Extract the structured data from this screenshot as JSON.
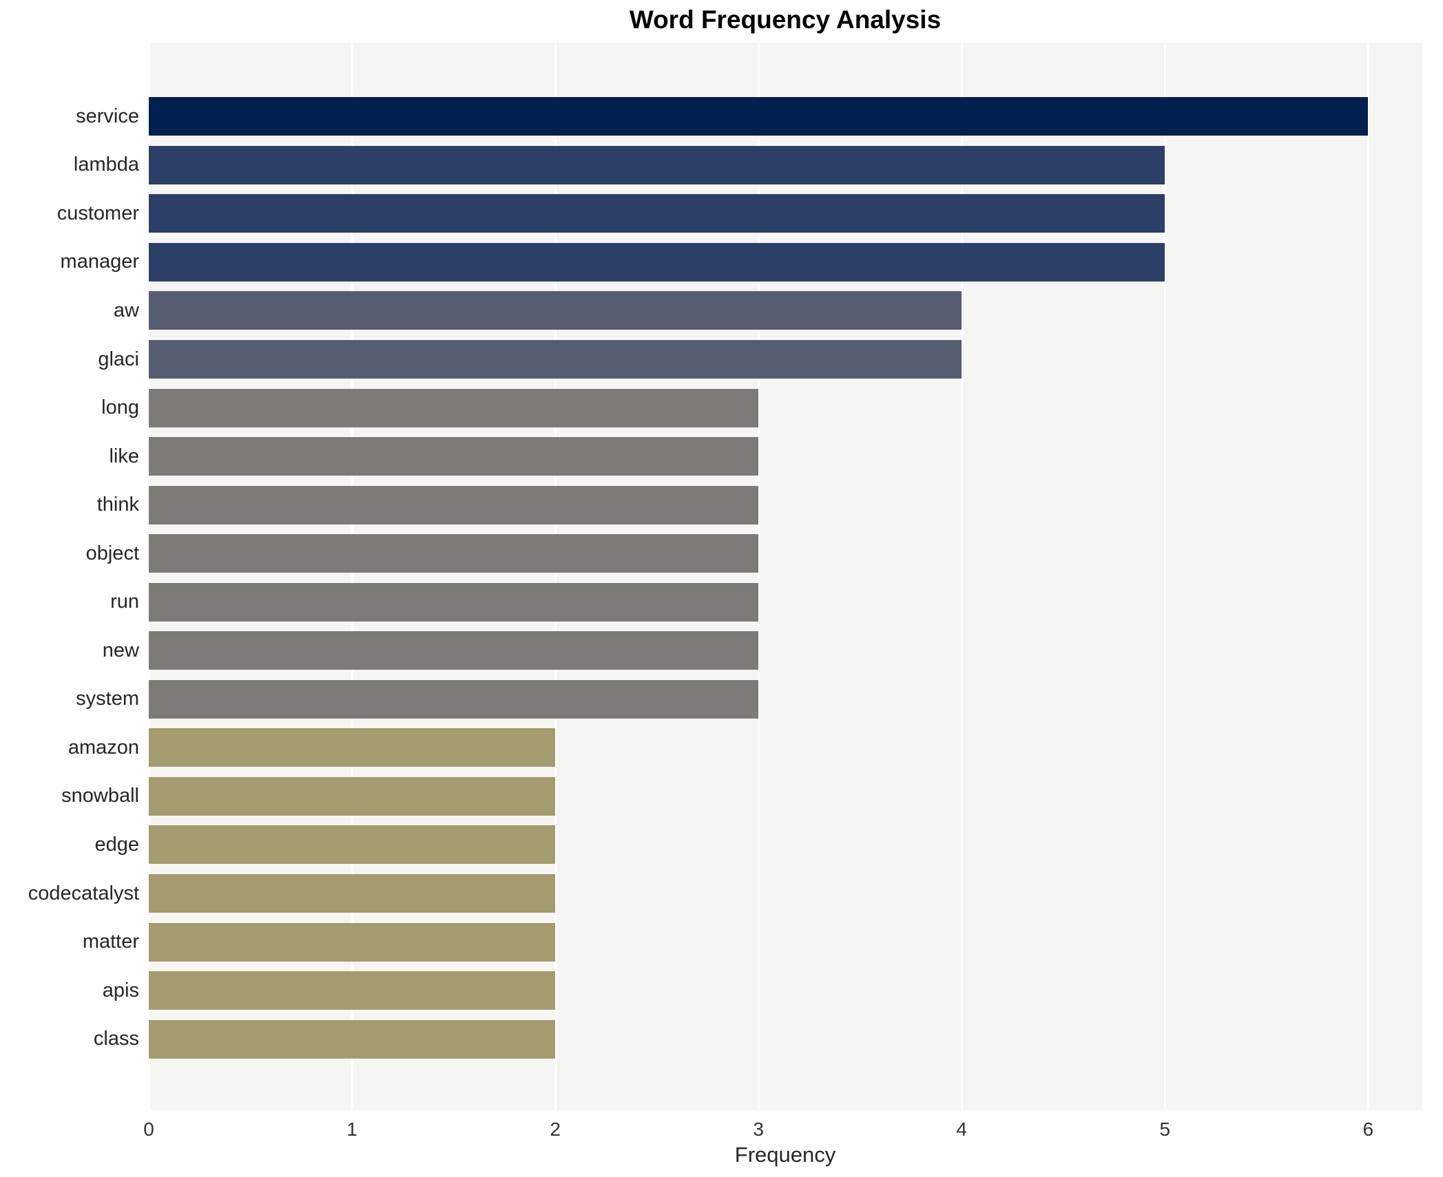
{
  "title": "Word Frequency Analysis",
  "chart_data": {
    "type": "bar",
    "orientation": "horizontal",
    "title": "Word Frequency Analysis",
    "xlabel": "Frequency",
    "ylabel": "",
    "xlim": [
      0,
      6.27
    ],
    "x_ticks": [
      0,
      1,
      2,
      3,
      4,
      5,
      6
    ],
    "grid": true,
    "legend": "none",
    "categories": [
      "service",
      "lambda",
      "customer",
      "manager",
      "aw",
      "glaci",
      "long",
      "like",
      "think",
      "object",
      "run",
      "new",
      "system",
      "amazon",
      "snowball",
      "edge",
      "codecatalyst",
      "matter",
      "apis",
      "class"
    ],
    "values": [
      6,
      5,
      5,
      5,
      4,
      4,
      3,
      3,
      3,
      3,
      3,
      3,
      3,
      2,
      2,
      2,
      2,
      2,
      2,
      2
    ],
    "colors_by_value": {
      "6": "#03214f",
      "5": "#2c4067",
      "4": "#565d71",
      "3": "#7c7b76",
      "2": "#a49b6e"
    },
    "plot_background": "#f5f5f4",
    "gridline_color": "#ffffff"
  }
}
